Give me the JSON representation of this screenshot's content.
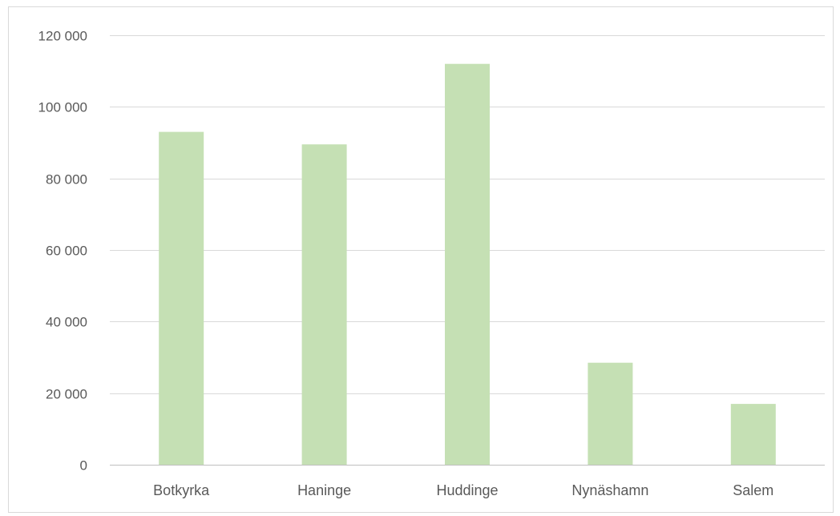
{
  "chart_data": {
    "type": "bar",
    "title": "",
    "xlabel": "",
    "ylabel": "",
    "categories": [
      "Botkyrka",
      "Haninge",
      "Huddinge",
      "Nynäshamn",
      "Salem"
    ],
    "values": [
      93000,
      89500,
      112000,
      28500,
      17000
    ],
    "ylim": [
      0,
      120000
    ],
    "yticks": [
      0,
      20000,
      40000,
      60000,
      80000,
      100000,
      120000
    ],
    "ytick_labels": [
      "0",
      "20 000",
      "40 000",
      "60 000",
      "80 000",
      "100 000",
      "120 000"
    ],
    "grid": true,
    "legend": "none",
    "bar_color": "#c5e0b4",
    "grid_color": "#d9d9d9",
    "text_color": "#595959"
  }
}
